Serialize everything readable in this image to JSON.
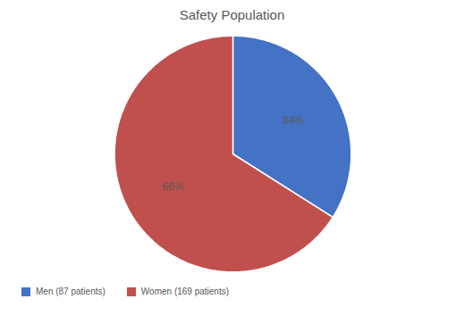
{
  "chart_data": {
    "type": "pie",
    "title": "Safety Population",
    "categories": [
      "Men (87 patients)",
      "Women (169 patients)"
    ],
    "values": [
      34,
      66
    ],
    "value_labels": [
      "34%",
      "66%"
    ],
    "colors": [
      "#4472C4",
      "#C0504D"
    ],
    "data_labels": true,
    "legend": "lower left"
  }
}
